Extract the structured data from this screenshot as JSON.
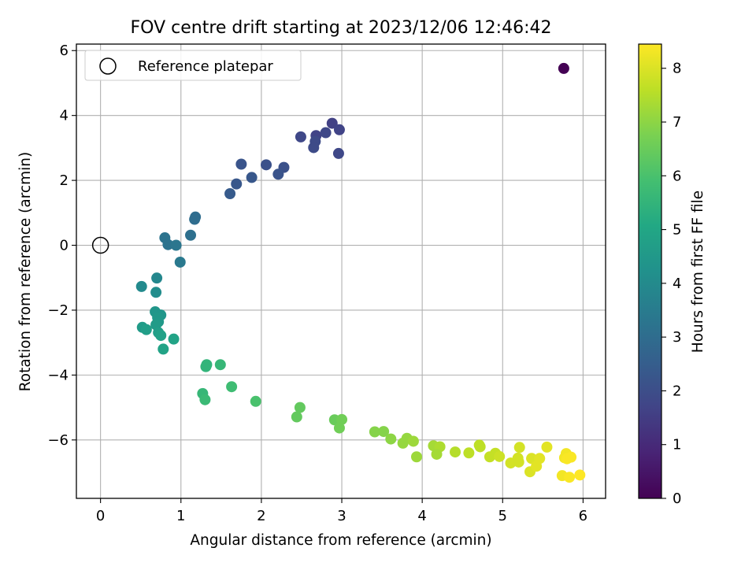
{
  "chart_data": {
    "type": "scatter",
    "title": "FOV centre drift starting at 2023/12/06 12:46:42",
    "xlabel": "Angular distance from reference (arcmin)",
    "ylabel": "Rotation from reference (arcmin)",
    "xlim": [
      -0.3,
      6.28
    ],
    "ylim": [
      -7.8,
      6.2
    ],
    "xticks": [
      0,
      1,
      2,
      3,
      4,
      5,
      6
    ],
    "yticks": [
      -6,
      -4,
      -2,
      0,
      2,
      4,
      6
    ],
    "grid": true,
    "legend": {
      "position": "top-left",
      "entries": [
        "Reference platepar"
      ]
    },
    "reference": {
      "x": 0,
      "y": 0,
      "marker": "open-circle"
    },
    "colorbar": {
      "label": "Hours from first FF file",
      "colormap": "viridis",
      "range": [
        0,
        8.45
      ],
      "ticks": [
        0,
        1,
        2,
        3,
        4,
        5,
        6,
        7,
        8
      ]
    },
    "points": [
      [
        5.76,
        5.45,
        0.0
      ],
      [
        2.88,
        3.76,
        1.6
      ],
      [
        2.97,
        3.56,
        1.7
      ],
      [
        2.68,
        3.38,
        1.7
      ],
      [
        2.49,
        3.34,
        1.8
      ],
      [
        2.8,
        3.47,
        1.8
      ],
      [
        2.67,
        3.2,
        1.9
      ],
      [
        2.65,
        3.01,
        1.9
      ],
      [
        2.96,
        2.83,
        1.8
      ],
      [
        1.75,
        2.5,
        2.2
      ],
      [
        2.06,
        2.48,
        2.1
      ],
      [
        2.28,
        2.4,
        2.1
      ],
      [
        2.21,
        2.19,
        2.2
      ],
      [
        1.88,
        2.09,
        2.3
      ],
      [
        1.69,
        1.89,
        2.3
      ],
      [
        1.61,
        1.59,
        2.4
      ],
      [
        1.18,
        0.87,
        3.0
      ],
      [
        1.17,
        0.8,
        3.0
      ],
      [
        1.12,
        0.31,
        3.1
      ],
      [
        0.8,
        0.23,
        3.2
      ],
      [
        0.84,
        0.02,
        3.2
      ],
      [
        0.94,
        0.0,
        3.3
      ],
      [
        0.99,
        -0.52,
        3.4
      ],
      [
        0.7,
        -1.01,
        3.9
      ],
      [
        0.51,
        -1.27,
        4.0
      ],
      [
        0.69,
        -1.45,
        4.1
      ],
      [
        0.68,
        -2.05,
        4.4
      ],
      [
        0.75,
        -2.15,
        4.4
      ],
      [
        0.71,
        -2.23,
        4.5
      ],
      [
        0.72,
        -2.36,
        4.5
      ],
      [
        0.69,
        -2.45,
        4.6
      ],
      [
        0.52,
        -2.53,
        4.6
      ],
      [
        0.57,
        -2.6,
        4.7
      ],
      [
        0.72,
        -2.69,
        4.7
      ],
      [
        0.75,
        -2.78,
        4.8
      ],
      [
        0.91,
        -2.89,
        4.9
      ],
      [
        0.78,
        -3.2,
        4.9
      ],
      [
        1.32,
        -3.68,
        5.5
      ],
      [
        1.31,
        -3.74,
        5.5
      ],
      [
        1.49,
        -3.68,
        5.6
      ],
      [
        1.27,
        -4.57,
        5.6
      ],
      [
        1.3,
        -4.76,
        5.7
      ],
      [
        1.63,
        -4.36,
        5.8
      ],
      [
        1.93,
        -4.81,
        6.0
      ],
      [
        2.48,
        -5.0,
        6.4
      ],
      [
        2.44,
        -5.29,
        6.4
      ],
      [
        2.91,
        -5.38,
        6.5
      ],
      [
        3.0,
        -5.37,
        6.6
      ],
      [
        2.97,
        -5.63,
        6.6
      ],
      [
        3.41,
        -5.75,
        6.9
      ],
      [
        3.52,
        -5.74,
        6.9
      ],
      [
        3.61,
        -5.97,
        7.0
      ],
      [
        3.76,
        -6.1,
        7.1
      ],
      [
        3.81,
        -5.95,
        7.1
      ],
      [
        3.89,
        -6.04,
        7.2
      ],
      [
        3.93,
        -6.52,
        7.2
      ],
      [
        4.14,
        -6.18,
        7.3
      ],
      [
        4.22,
        -6.21,
        7.4
      ],
      [
        4.18,
        -6.44,
        7.3
      ],
      [
        4.41,
        -6.37,
        7.5
      ],
      [
        4.58,
        -6.4,
        7.6
      ],
      [
        4.71,
        -6.16,
        7.6
      ],
      [
        4.72,
        -6.21,
        7.6
      ],
      [
        4.84,
        -6.52,
        7.7
      ],
      [
        4.91,
        -6.41,
        7.7
      ],
      [
        4.96,
        -6.51,
        7.8
      ],
      [
        5.1,
        -6.71,
        7.9
      ],
      [
        5.19,
        -6.56,
        7.9
      ],
      [
        5.21,
        -6.23,
        7.9
      ],
      [
        5.2,
        -6.68,
        7.9
      ],
      [
        5.34,
        -6.98,
        8.0
      ],
      [
        5.36,
        -6.57,
        8.0
      ],
      [
        5.42,
        -6.81,
        8.1
      ],
      [
        5.46,
        -6.57,
        8.1
      ],
      [
        5.55,
        -6.22,
        8.1
      ],
      [
        5.74,
        -7.1,
        8.3
      ],
      [
        5.79,
        -6.42,
        8.3
      ],
      [
        5.77,
        -6.55,
        8.3
      ],
      [
        5.8,
        -6.58,
        8.4
      ],
      [
        5.85,
        -6.53,
        8.4
      ],
      [
        5.83,
        -7.15,
        8.4
      ],
      [
        5.96,
        -7.08,
        8.45
      ]
    ]
  }
}
